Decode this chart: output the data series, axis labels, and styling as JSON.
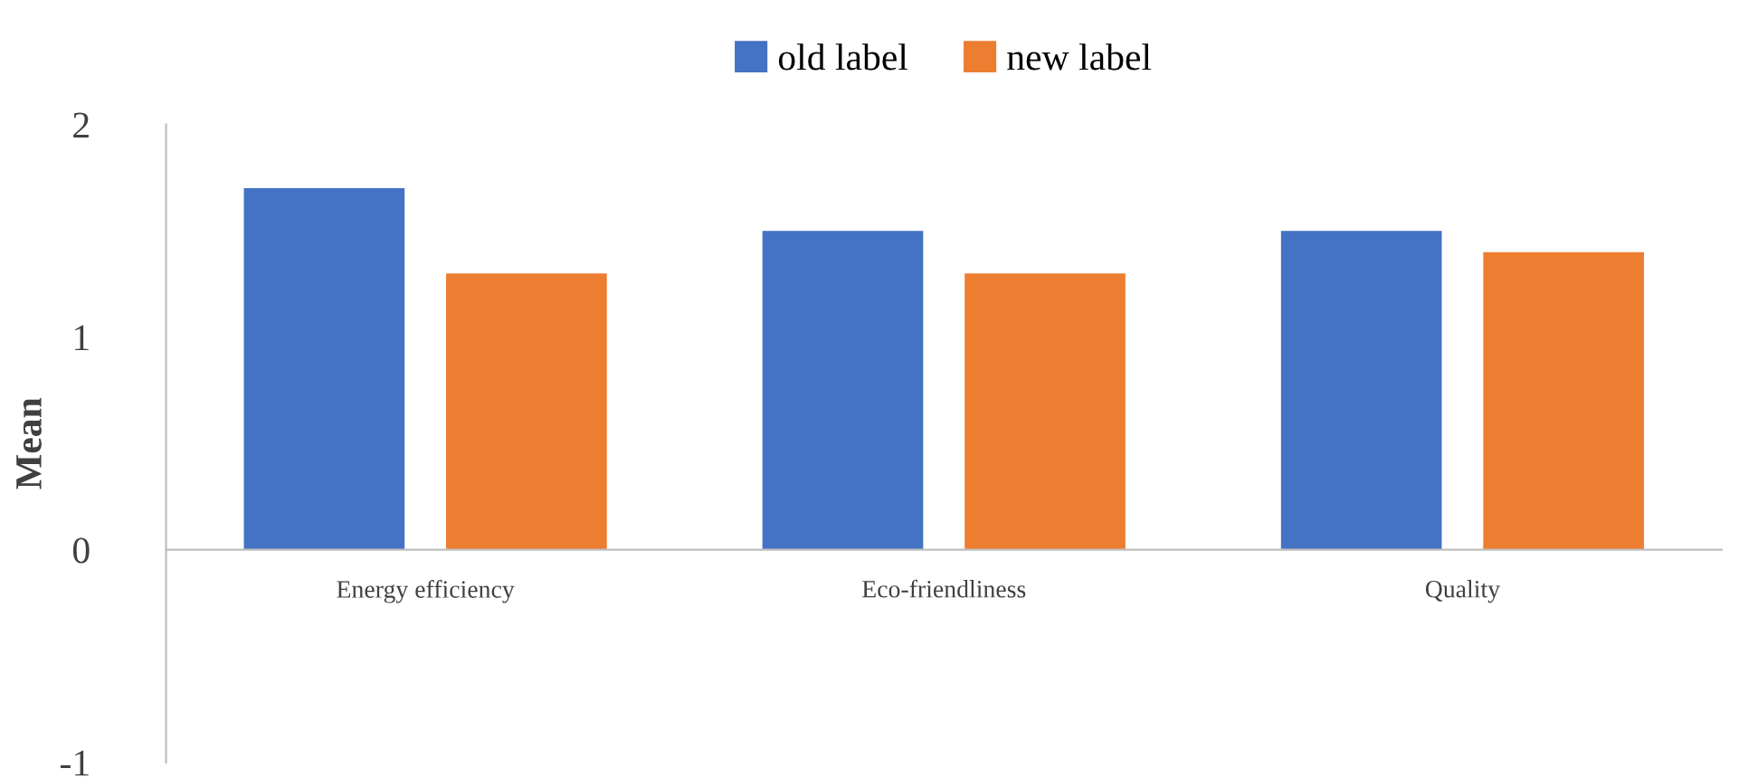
{
  "chart_data": {
    "type": "bar",
    "ylabel": "Mean",
    "categories": [
      "Energy efficiency",
      "Eco-friendliness",
      "Quality"
    ],
    "series": [
      {
        "name": "old label",
        "color": "#4472c4",
        "values": [
          1.7,
          1.5,
          1.5
        ]
      },
      {
        "name": "new label",
        "color": "#ed7d31",
        "values": [
          1.3,
          1.3,
          1.4
        ]
      }
    ],
    "ylim": [
      -1,
      2
    ],
    "yticks": [
      -1,
      0,
      1,
      2
    ],
    "grid": false,
    "legend": "top"
  }
}
